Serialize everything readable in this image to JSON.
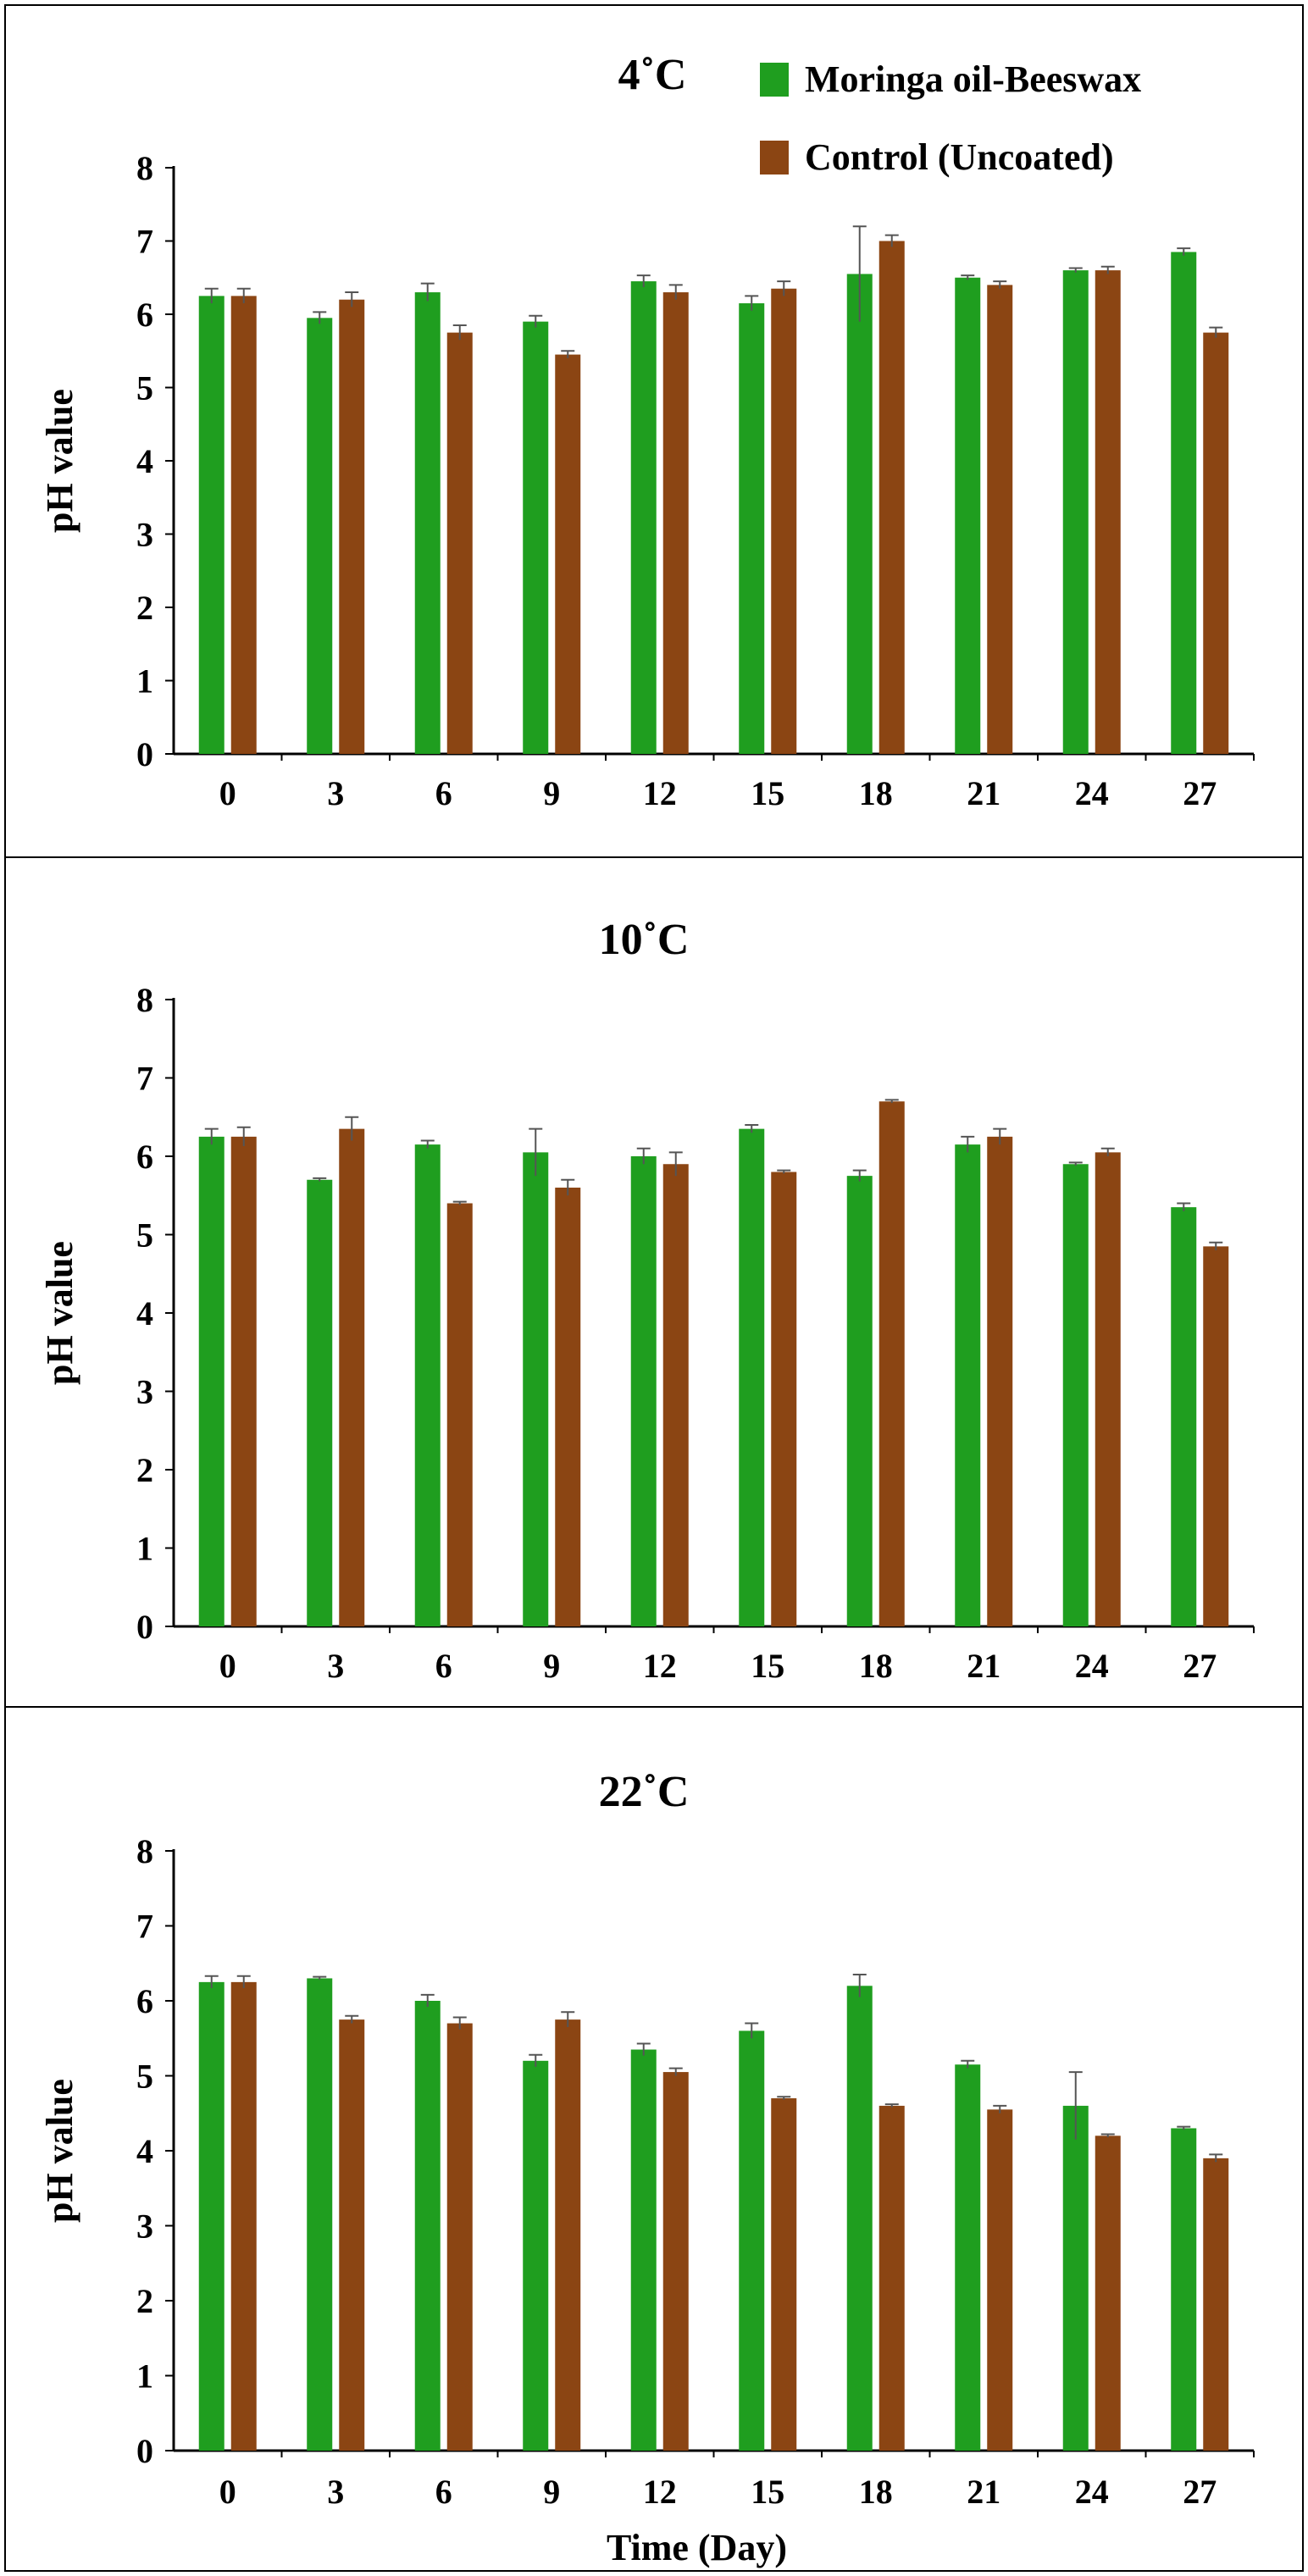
{
  "chart_data": [
    {
      "type": "bar",
      "title": "4˚C",
      "ylabel": "pH value",
      "xlabel": "",
      "ylim": [
        0,
        8
      ],
      "yticks": [
        0,
        1,
        2,
        3,
        4,
        5,
        6,
        7,
        8
      ],
      "categories": [
        "0",
        "3",
        "6",
        "9",
        "12",
        "15",
        "18",
        "21",
        "24",
        "27"
      ],
      "series": [
        {
          "name": "Moringa oil-Beeswax",
          "color": "#1f9e1f",
          "values": [
            6.25,
            5.95,
            6.3,
            5.9,
            6.45,
            6.15,
            6.55,
            6.5,
            6.6,
            6.85
          ],
          "errors": [
            0.1,
            0.08,
            0.12,
            0.08,
            0.08,
            0.1,
            0.65,
            0.03,
            0.03,
            0.05
          ]
        },
        {
          "name": "Control (Uncoated)",
          "color": "#8b4513",
          "values": [
            6.25,
            6.2,
            5.75,
            5.45,
            6.3,
            6.35,
            7.0,
            6.4,
            6.6,
            5.75
          ],
          "errors": [
            0.1,
            0.1,
            0.1,
            0.05,
            0.1,
            0.1,
            0.08,
            0.05,
            0.05,
            0.07
          ]
        }
      ],
      "legend": "top-right"
    },
    {
      "type": "bar",
      "title": "10˚C",
      "ylabel": "pH value",
      "xlabel": "",
      "ylim": [
        0,
        8
      ],
      "yticks": [
        0,
        1,
        2,
        3,
        4,
        5,
        6,
        7,
        8
      ],
      "categories": [
        "0",
        "3",
        "6",
        "9",
        "12",
        "15",
        "18",
        "21",
        "24",
        "27"
      ],
      "series": [
        {
          "name": "Moringa oil-Beeswax",
          "color": "#1f9e1f",
          "values": [
            6.25,
            5.7,
            6.15,
            6.05,
            6.0,
            6.35,
            5.75,
            6.15,
            5.9,
            5.35
          ],
          "errors": [
            0.1,
            0.02,
            0.05,
            0.3,
            0.1,
            0.05,
            0.07,
            0.1,
            0.02,
            0.05
          ]
        },
        {
          "name": "Control (Uncoated)",
          "color": "#8b4513",
          "values": [
            6.25,
            6.35,
            5.4,
            5.6,
            5.9,
            5.8,
            6.7,
            6.25,
            6.05,
            4.85
          ],
          "errors": [
            0.12,
            0.15,
            0.02,
            0.1,
            0.15,
            0.02,
            0.02,
            0.1,
            0.05,
            0.05
          ]
        }
      ]
    },
    {
      "type": "bar",
      "title": "22˚C",
      "ylabel": "pH value",
      "xlabel": "Time (Day)",
      "ylim": [
        0,
        8
      ],
      "yticks": [
        0,
        1,
        2,
        3,
        4,
        5,
        6,
        7,
        8
      ],
      "categories": [
        "0",
        "3",
        "6",
        "9",
        "12",
        "15",
        "18",
        "21",
        "24",
        "27"
      ],
      "series": [
        {
          "name": "Moringa oil-Beeswax",
          "color": "#1f9e1f",
          "values": [
            6.25,
            6.3,
            6.0,
            5.2,
            5.35,
            5.6,
            6.2,
            5.15,
            4.6,
            4.3
          ],
          "errors": [
            0.08,
            0.02,
            0.08,
            0.08,
            0.08,
            0.1,
            0.15,
            0.05,
            0.45,
            0.02
          ]
        },
        {
          "name": "Control (Uncoated)",
          "color": "#8b4513",
          "values": [
            6.25,
            5.75,
            5.7,
            5.75,
            5.05,
            4.7,
            4.6,
            4.55,
            4.2,
            3.9
          ],
          "errors": [
            0.08,
            0.05,
            0.08,
            0.1,
            0.05,
            0.02,
            0.02,
            0.05,
            0.02,
            0.05
          ]
        }
      ]
    }
  ]
}
